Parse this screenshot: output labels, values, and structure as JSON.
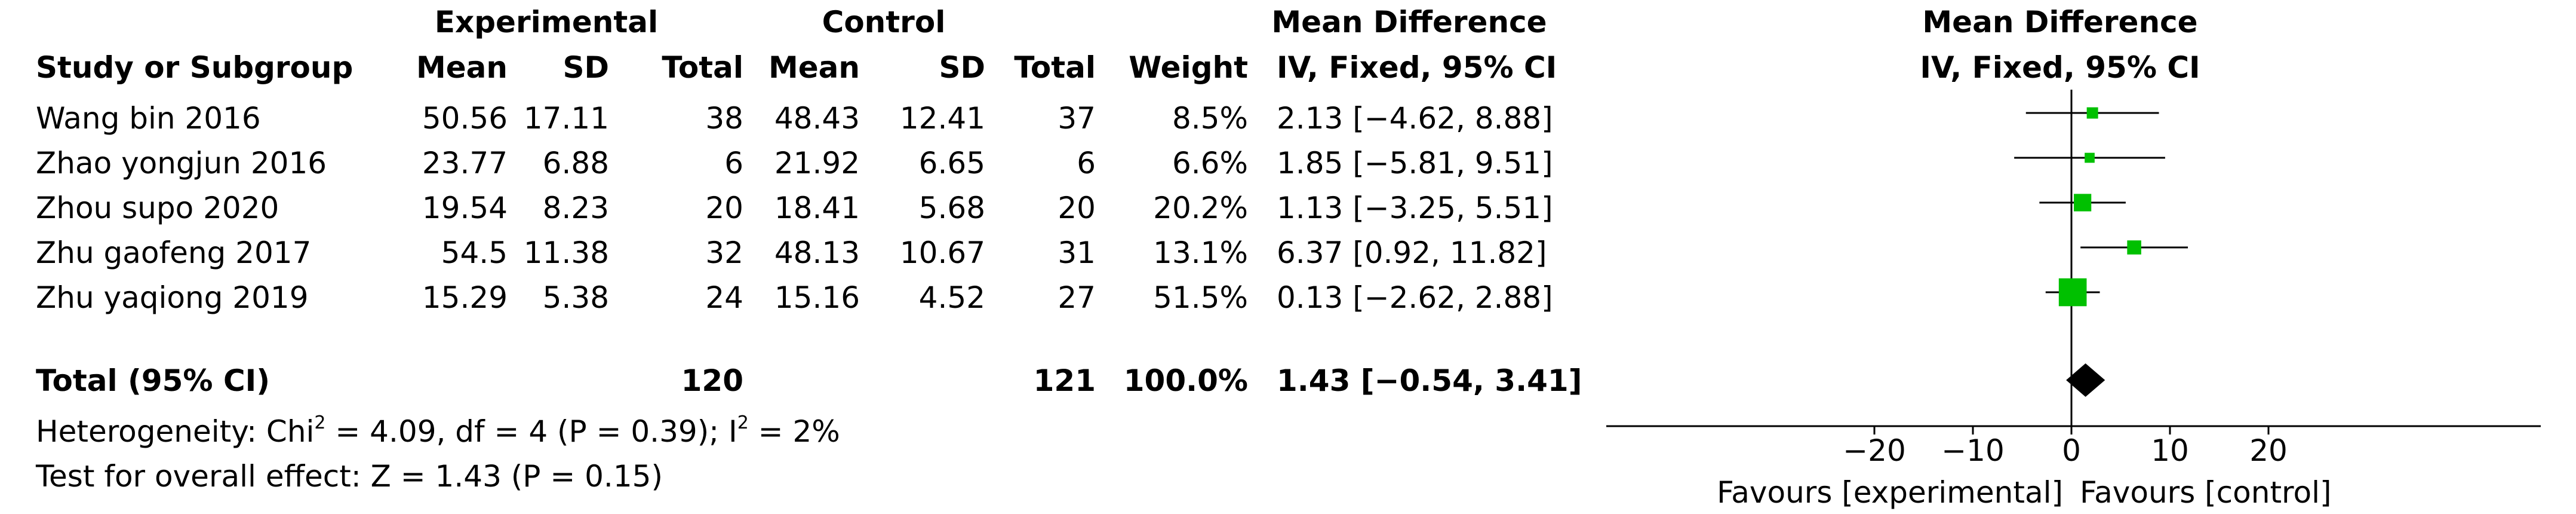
{
  "headers": {
    "experimental": "Experimental",
    "control": "Control",
    "mean_difference_table": "Mean Difference",
    "mean_difference_plot": "Mean Difference",
    "study": "Study or Subgroup",
    "mean": "Mean",
    "sd": "SD",
    "total": "Total",
    "weight": "Weight",
    "method_table": "IV, Fixed, 95% CI",
    "method_plot": "IV, Fixed, 95% CI"
  },
  "studies": [
    {
      "name": "Wang bin 2016",
      "e_mean": "50.56",
      "e_sd": "17.11",
      "e_total": "38",
      "c_mean": "48.43",
      "c_sd": "12.41",
      "c_total": "37",
      "weight": "8.5%",
      "ci": "2.13 [−4.62, 8.88]"
    },
    {
      "name": "Zhao yongjun 2016",
      "e_mean": "23.77",
      "e_sd": "6.88",
      "e_total": "6",
      "c_mean": "21.92",
      "c_sd": "6.65",
      "c_total": "6",
      "weight": "6.6%",
      "ci": "1.85 [−5.81, 9.51]"
    },
    {
      "name": "Zhou supo 2020",
      "e_mean": "19.54",
      "e_sd": "8.23",
      "e_total": "20",
      "c_mean": "18.41",
      "c_sd": "5.68",
      "c_total": "20",
      "weight": "20.2%",
      "ci": "1.13 [−3.25, 5.51]"
    },
    {
      "name": "Zhu gaofeng 2017",
      "e_mean": "54.5",
      "e_sd": "11.38",
      "e_total": "32",
      "c_mean": "48.13",
      "c_sd": "10.67",
      "c_total": "31",
      "weight": "13.1%",
      "ci": "6.37 [0.92, 11.82]"
    },
    {
      "name": "Zhu yaqiong 2019",
      "e_mean": "15.29",
      "e_sd": "5.38",
      "e_total": "24",
      "c_mean": "15.16",
      "c_sd": "4.52",
      "c_total": "27",
      "weight": "51.5%",
      "ci": "0.13 [−2.62, 2.88]"
    }
  ],
  "total": {
    "name": "Total (95% CI)",
    "e_total": "120",
    "c_total": "121",
    "weight": "100.0%",
    "ci": "1.43 [−0.54, 3.41]"
  },
  "heterogeneity": {
    "prefix": "Heterogeneity: Chi",
    "sup1": "2",
    "middle": " = 4.09, df = 4 (P = 0.39); I",
    "sup2": "2",
    "suffix": " = 2%"
  },
  "overall_effect": "Test for overall effect: Z = 1.43 (P = 0.15)",
  "favours_left": "Favours [experimental]",
  "favours_right": "Favours [control]",
  "colors": {
    "marker": "#00c000",
    "diamond": "#000000",
    "line": "#000000"
  },
  "chart_data": {
    "type": "scatter",
    "title": "",
    "xlabel": "",
    "ylabel": "",
    "xlim": [
      -50,
      50
    ],
    "xticks": [
      -20,
      -10,
      0,
      10,
      20
    ],
    "xtick_labels": [
      "−20",
      "−10",
      "0",
      "10",
      "20"
    ],
    "series": [
      {
        "values": [
          {
            "study": "Wang bin 2016",
            "md": 2.13,
            "lower": -4.62,
            "upper": 8.88,
            "weight": 8.5
          },
          {
            "study": "Zhao yongjun 2016",
            "md": 1.85,
            "lower": -5.81,
            "upper": 9.51,
            "weight": 6.6
          },
          {
            "study": "Zhou supo 2020",
            "md": 1.13,
            "lower": -3.25,
            "upper": 5.51,
            "weight": 20.2
          },
          {
            "study": "Zhu gaofeng 2017",
            "md": 6.37,
            "lower": 0.92,
            "upper": 11.82,
            "weight": 13.1
          },
          {
            "study": "Zhu yaqiong 2019",
            "md": 0.13,
            "lower": -2.62,
            "upper": 2.88,
            "weight": 51.5
          }
        ]
      }
    ],
    "pooled": {
      "md": 1.43,
      "lower": -0.54,
      "upper": 3.41
    },
    "grid": false,
    "legend": "none"
  }
}
